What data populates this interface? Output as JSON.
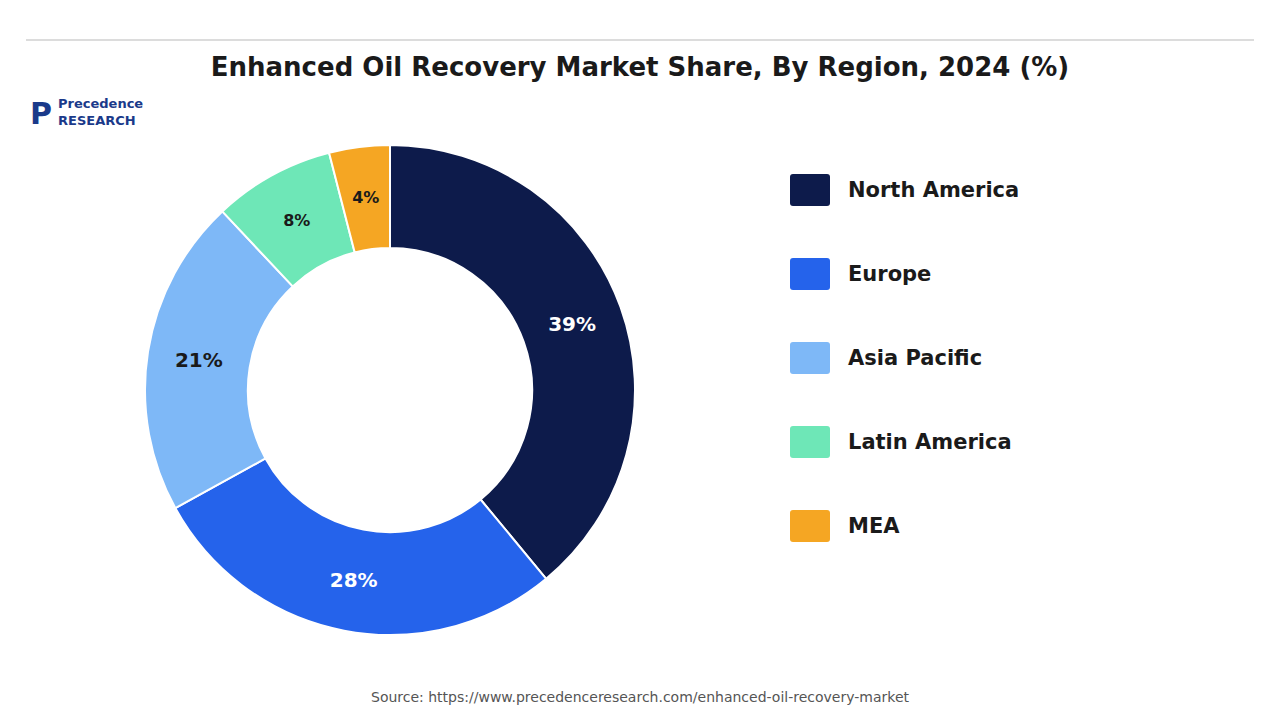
{
  "chart_data": {
    "type": "donut",
    "title": "Enhanced Oil Recovery Market Share, By Region, 2024 (%)",
    "categories": [
      "North America",
      "Europe",
      "Asia Pacific",
      "Latin America",
      "MEA"
    ],
    "values": [
      39,
      28,
      21,
      8,
      4
    ],
    "value_labels": [
      "39%",
      "28%",
      "21%",
      "8%",
      "4%"
    ],
    "colors": [
      "#0d1b4b",
      "#2563eb",
      "#7eb8f7",
      "#6ee7b7",
      "#f5a623"
    ],
    "data_labels": true,
    "legend": "right",
    "annotations": [
      "Source: https://www.precedenceresearch.com/enhanced-oil-recovery-market",
      "P",
      "Precedence\nRESEARCH"
    ]
  }
}
